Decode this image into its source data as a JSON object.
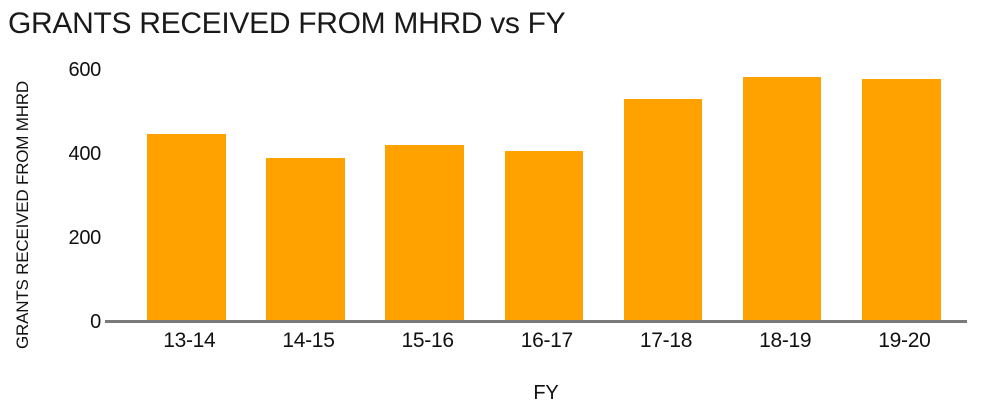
{
  "chart_data": {
    "type": "bar",
    "title": "GRANTS RECEIVED FROM MHRD vs FY",
    "xlabel": "FY",
    "ylabel": "GRANTS RECEIVED FROM MHRD",
    "categories": [
      "13-14",
      "14-15",
      "15-16",
      "16-17",
      "17-18",
      "18-19",
      "19-20"
    ],
    "values": [
      447,
      391,
      420,
      406,
      530,
      583,
      578
    ],
    "yticks": [
      0,
      200,
      400,
      600
    ],
    "ylim": [
      0,
      600
    ],
    "grid": false,
    "legend": false,
    "orientation": "vertical",
    "colors": {
      "bar": "#FFA200",
      "axis_line": "#7a7a7a",
      "text": "#111111",
      "title": "#1a1a1a"
    }
  }
}
